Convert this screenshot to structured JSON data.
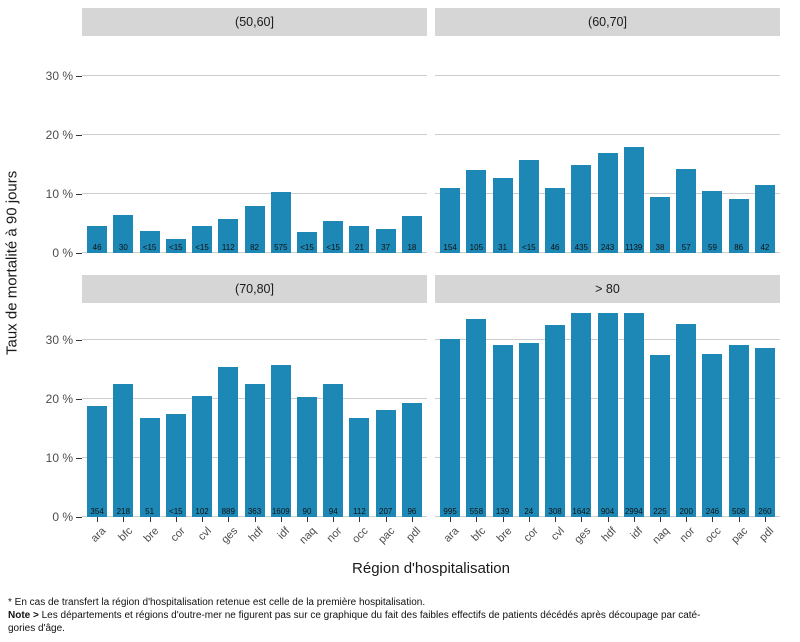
{
  "chart_data": {
    "type": "bar",
    "title": "",
    "xlabel": "Région d'hospitalisation",
    "ylabel": "Taux de mortalité à 90 jours",
    "categories": [
      "ara",
      "bfc",
      "bre",
      "cor",
      "cvl",
      "ges",
      "hdf",
      "idf",
      "naq",
      "nor",
      "occ",
      "pac",
      "pdl"
    ],
    "y_ticks": [
      "0 %",
      "10 %",
      "20 %",
      "30 %"
    ],
    "y_tick_values": [
      0,
      10,
      20,
      30
    ],
    "ylim": [
      0,
      36.5
    ],
    "grid": true,
    "legend": "none",
    "bar_color": "#1d88b5",
    "facets": [
      {
        "label": "(50,60]",
        "values": [
          4.5,
          6.5,
          3.8,
          2.4,
          4.5,
          5.8,
          7.9,
          10.3,
          3.6,
          5.4,
          4.5,
          4.1,
          6.2
        ],
        "counts": [
          "46",
          "30",
          "<15",
          "<15",
          "<15",
          "112",
          "82",
          "575",
          "<15",
          "<15",
          "21",
          "37",
          "18"
        ]
      },
      {
        "label": "(60,70]",
        "values": [
          11.1,
          14.1,
          12.7,
          15.8,
          11.1,
          14.9,
          17.0,
          18.0,
          9.5,
          14.2,
          10.5,
          9.2,
          11.6
        ],
        "counts": [
          "154",
          "105",
          "31",
          "<15",
          "46",
          "435",
          "243",
          "1139",
          "38",
          "57",
          "59",
          "86",
          "42"
        ]
      },
      {
        "label": "(70,80]",
        "values": [
          18.9,
          22.6,
          16.8,
          17.5,
          20.5,
          25.5,
          22.6,
          25.8,
          20.4,
          22.6,
          16.8,
          18.1,
          19.4
        ],
        "counts": [
          "354",
          "218",
          "51",
          "<15",
          "102",
          "889",
          "363",
          "1609",
          "90",
          "94",
          "112",
          "207",
          "96"
        ]
      },
      {
        "label": "> 80",
        "values": [
          30.2,
          33.6,
          29.1,
          29.5,
          32.5,
          34.5,
          34.5,
          34.5,
          27.4,
          32.8,
          27.6,
          29.2,
          28.6
        ],
        "counts": [
          "995",
          "558",
          "139",
          "24",
          "308",
          "1642",
          "904",
          "2994",
          "225",
          "200",
          "246",
          "508",
          "260"
        ]
      }
    ]
  },
  "footnotes": {
    "star_line": "* En cas de transfert la région d'hospitalisation retenue est celle de la première hospitalisation.",
    "note_label": "Note >",
    "note_line1": "Les départements et régions d'outre-mer ne figurent pas sur ce graphique du fait des faibles effectifs de patients décédés après découpage par caté-",
    "note_line2": "gories d'âge."
  }
}
